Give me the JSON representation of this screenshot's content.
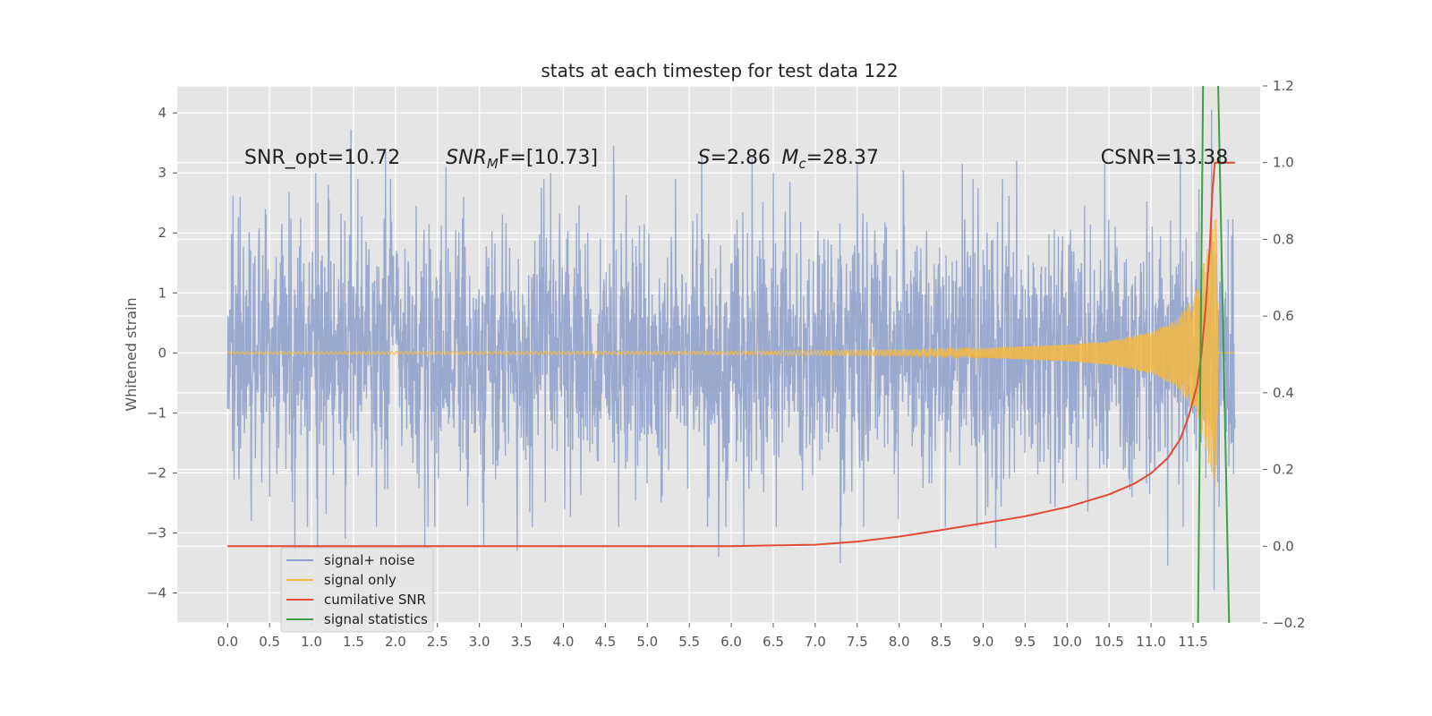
{
  "chart_data": {
    "type": "line",
    "title": "stats at each timestep for test data 122",
    "ylabel": "Whitened strain",
    "xlim": [
      -0.6,
      12.3
    ],
    "ylim": [
      -4.5,
      4.45
    ],
    "y2lim": [
      -0.2,
      1.2
    ],
    "grid": true,
    "legend_placement": "lower-left",
    "x_ticks": [
      0.0,
      0.5,
      1.0,
      1.5,
      2.0,
      2.5,
      3.0,
      3.5,
      4.0,
      4.5,
      5.0,
      5.5,
      6.0,
      6.5,
      7.0,
      7.5,
      8.0,
      8.5,
      9.0,
      9.5,
      10.0,
      10.5,
      11.0,
      11.5
    ],
    "x_tick_labels": [
      "0.0",
      "0.5",
      "1.0",
      "1.5",
      "2.0",
      "2.5",
      "3.0",
      "3.5",
      "4.0",
      "4.5",
      "5.0",
      "5.5",
      "6.0",
      "6.5",
      "7.0",
      "7.5",
      "8.0",
      "8.5",
      "9.0",
      "9.5",
      "10.0",
      "10.5",
      "11.0",
      "11.5"
    ],
    "y_ticks": [
      -4,
      -3,
      -2,
      -1,
      0,
      1,
      2,
      3,
      4
    ],
    "y_tick_labels": [
      "−4",
      "−3",
      "−2",
      "−1",
      "0",
      "1",
      "2",
      "3",
      "4"
    ],
    "y2_ticks": [
      -0.2,
      0.0,
      0.2,
      0.4,
      0.6,
      0.8,
      1.0,
      1.2
    ],
    "y2_tick_labels": [
      "−0.2",
      "0.0",
      "0.2",
      "0.4",
      "0.6",
      "0.8",
      "1.0",
      "1.2"
    ],
    "annotations": [
      {
        "text": "SNR_opt=10.72",
        "x": 0.2,
        "y": 3.15
      },
      {
        "text": "SNR",
        "sub": "M",
        "rest": "F=[10.73]",
        "italic": true,
        "x": 2.6,
        "y": 3.15
      },
      {
        "text": "S",
        "rest": "=2.86",
        "italic": true,
        "x": 5.6,
        "y": 3.15
      },
      {
        "text": "M",
        "sub": "c",
        "rest": "=28.37",
        "italic": true,
        "x": 6.6,
        "y": 3.15
      },
      {
        "text": "CSNR=13.38",
        "x": 10.4,
        "y": 3.15
      }
    ],
    "series": [
      {
        "name": "signal+ noise",
        "color": "#8da0cb",
        "x_range": [
          0.0,
          12.0
        ],
        "typical_envelope": [
          -2.0,
          2.0
        ],
        "peak_values": [
          [
            0.15,
            2.6
          ],
          [
            0.45,
            2.4
          ],
          [
            0.8,
            2.7
          ],
          [
            1.05,
            3.0
          ],
          [
            1.2,
            2.8
          ],
          [
            1.47,
            3.72
          ],
          [
            1.55,
            2.9
          ],
          [
            1.88,
            3.35
          ],
          [
            2.6,
            3.1
          ],
          [
            3.85,
            3.0
          ],
          [
            4.6,
            3.45
          ],
          [
            5.65,
            3.3
          ],
          [
            6.25,
            3.25
          ],
          [
            6.5,
            3.0
          ],
          [
            7.5,
            3.15
          ],
          [
            8.05,
            3.05
          ],
          [
            8.75,
            3.15
          ],
          [
            9.4,
            3.2
          ],
          [
            10.45,
            3.15
          ],
          [
            11.35,
            3.3
          ],
          [
            11.72,
            4.05
          ],
          [
            0.8,
            -3.4
          ],
          [
            1.07,
            -3.3
          ],
          [
            1.4,
            -3.1
          ],
          [
            2.35,
            -3.3
          ],
          [
            3.05,
            -3.2
          ],
          [
            3.45,
            -3.3
          ],
          [
            5.85,
            -3.4
          ],
          [
            6.15,
            -3.2
          ],
          [
            7.3,
            -3.5
          ],
          [
            8.55,
            -2.9
          ],
          [
            9.15,
            -3.25
          ],
          [
            11.2,
            -3.55
          ],
          [
            11.75,
            -3.95
          ]
        ]
      },
      {
        "name": "signal only",
        "color": "#f4b942",
        "envelope": [
          [
            0.0,
            0.02
          ],
          [
            6.0,
            0.03
          ],
          [
            8.0,
            0.05
          ],
          [
            9.0,
            0.08
          ],
          [
            10.0,
            0.14
          ],
          [
            10.5,
            0.2
          ],
          [
            11.0,
            0.35
          ],
          [
            11.3,
            0.55
          ],
          [
            11.5,
            0.95
          ],
          [
            11.65,
            1.6
          ],
          [
            11.75,
            2.2
          ],
          [
            11.78,
            2.3
          ],
          [
            11.8,
            0.0
          ]
        ]
      },
      {
        "name": "cumilative SNR",
        "color": "#e24a33",
        "axis": "right",
        "points": [
          [
            0.0,
            0.0
          ],
          [
            6.0,
            0.0
          ],
          [
            6.5,
            0.002
          ],
          [
            7.0,
            0.004
          ],
          [
            7.5,
            0.012
          ],
          [
            8.0,
            0.025
          ],
          [
            8.5,
            0.042
          ],
          [
            9.0,
            0.06
          ],
          [
            9.5,
            0.078
          ],
          [
            10.0,
            0.102
          ],
          [
            10.5,
            0.135
          ],
          [
            10.8,
            0.163
          ],
          [
            11.0,
            0.19
          ],
          [
            11.2,
            0.23
          ],
          [
            11.35,
            0.28
          ],
          [
            11.45,
            0.34
          ],
          [
            11.55,
            0.42
          ],
          [
            11.6,
            0.5
          ],
          [
            11.65,
            0.62
          ],
          [
            11.7,
            0.78
          ],
          [
            11.73,
            0.92
          ],
          [
            11.76,
            1.0
          ],
          [
            12.0,
            1.0
          ]
        ]
      },
      {
        "name": "signal statistics",
        "color": "#3aa04a",
        "segments": [
          [
            [
              11.56,
              -4.5
            ],
            [
              11.62,
              4.45
            ]
          ],
          [
            [
              11.8,
              4.45
            ],
            [
              11.93,
              -4.5
            ]
          ]
        ]
      }
    ]
  }
}
